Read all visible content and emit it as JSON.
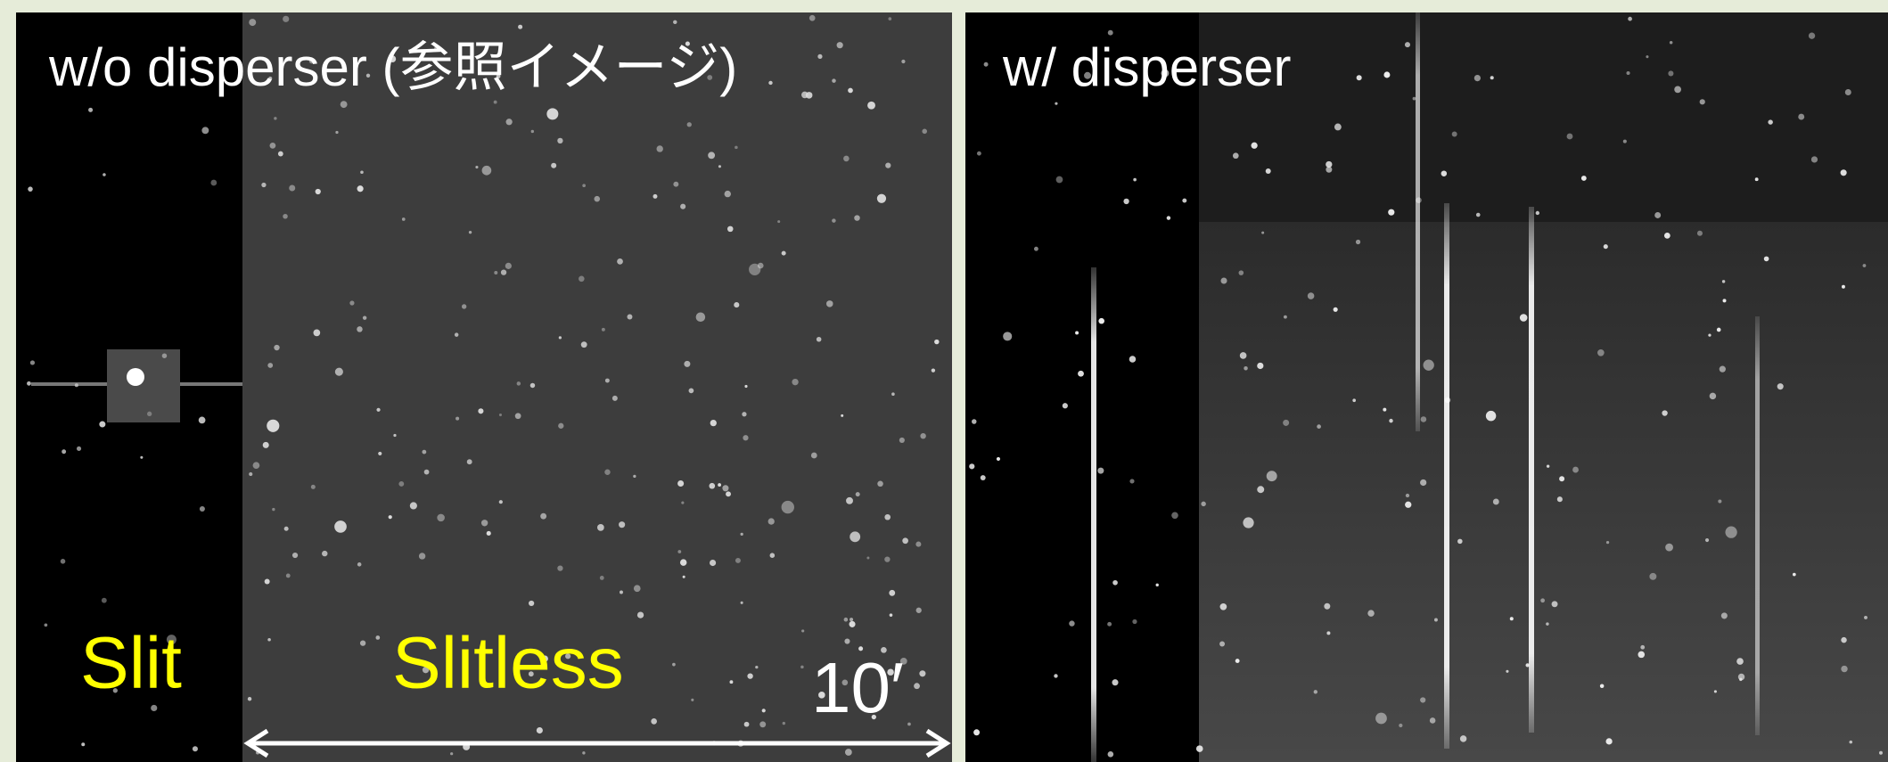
{
  "panels": [
    {
      "title": "w/o disperser (参照イメージ)",
      "slit_label": "Slit",
      "slitless_label": "Slitless",
      "scale_label": "10′"
    },
    {
      "title": "w/ disperser"
    }
  ]
}
